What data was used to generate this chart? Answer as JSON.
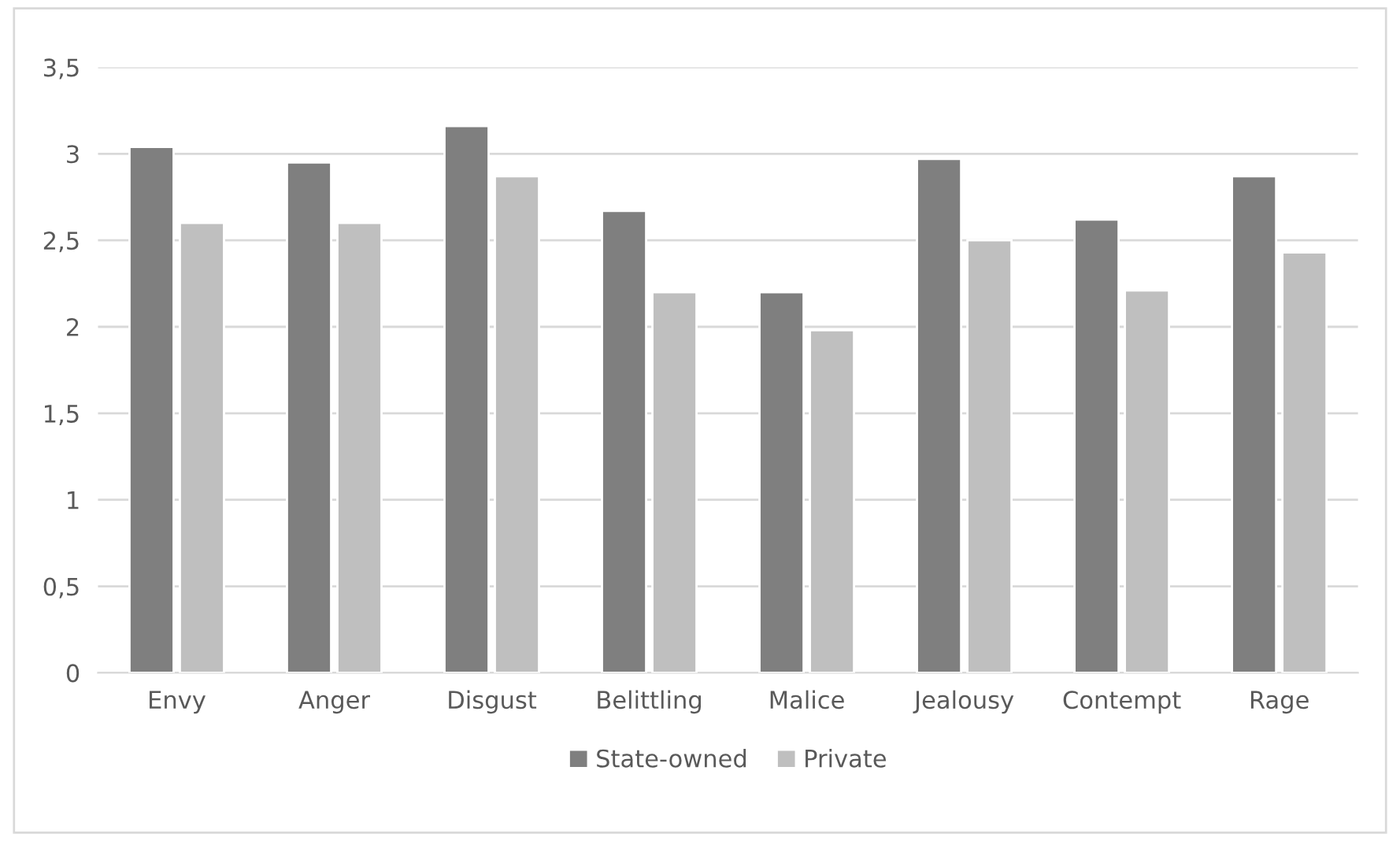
{
  "chart_data": {
    "type": "bar",
    "categories": [
      "Envy",
      "Anger",
      "Disgust",
      "Belittling",
      "Malice",
      "Jealousy",
      "Contempt",
      "Rage"
    ],
    "series": [
      {
        "name": "State-owned",
        "color": "#7f7f7f",
        "values": [
          3.04,
          2.95,
          3.16,
          2.67,
          2.2,
          2.97,
          2.62,
          2.87
        ]
      },
      {
        "name": "Private",
        "color": "#bfbfbf",
        "values": [
          2.6,
          2.6,
          2.87,
          2.2,
          1.98,
          2.5,
          2.21,
          2.43
        ]
      }
    ],
    "ylim": [
      0,
      3.5
    ],
    "yticks": [
      {
        "value": 0,
        "label": "0"
      },
      {
        "value": 0.5,
        "label": "0,5"
      },
      {
        "value": 1,
        "label": "1"
      },
      {
        "value": 1.5,
        "label": "1,5"
      },
      {
        "value": 2,
        "label": "2"
      },
      {
        "value": 2.5,
        "label": "2,5"
      },
      {
        "value": 3,
        "label": "3"
      },
      {
        "value": 3.5,
        "label": "3,5"
      }
    ],
    "grid": "y",
    "legend": "bottom"
  }
}
